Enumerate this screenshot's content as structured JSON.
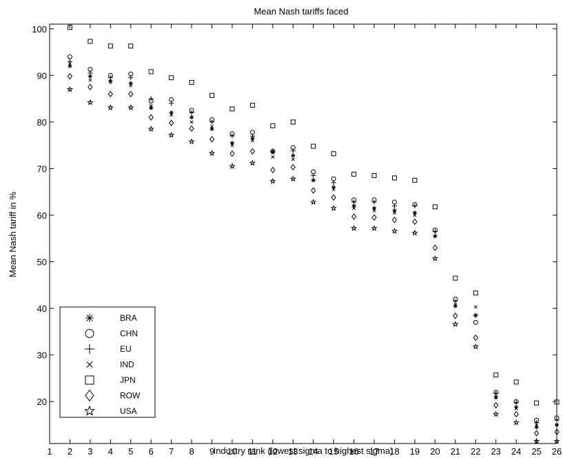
{
  "chart_data": {
    "type": "scatter",
    "title": "Mean Nash tariffs faced",
    "xlabel": "Industry rank (lowest sigma to highest sigma)",
    "ylabel": "Mean Nash tariff in %",
    "xlim": [
      1,
      26
    ],
    "ylim": [
      11,
      101
    ],
    "xticks": [
      1,
      2,
      3,
      4,
      5,
      6,
      7,
      8,
      9,
      10,
      11,
      12,
      13,
      14,
      15,
      16,
      17,
      18,
      19,
      20,
      21,
      22,
      23,
      24,
      25,
      26
    ],
    "yticks": [
      20,
      30,
      40,
      50,
      60,
      70,
      80,
      90,
      100
    ],
    "grid": false,
    "legend_position": "bottom-left",
    "x": [
      2,
      3,
      4,
      5,
      6,
      7,
      8,
      9,
      10,
      11,
      12,
      13,
      14,
      15,
      16,
      17,
      18,
      19,
      20,
      21,
      22,
      23,
      24,
      25,
      26
    ],
    "series": [
      {
        "name": "BRA",
        "marker": "asterisk",
        "values": [
          92.0,
          89.8,
          88.8,
          88.3,
          83.0,
          82.0,
          81.0,
          78.5,
          75.5,
          76.5,
          73.5,
          72.8,
          67.5,
          66.0,
          62.0,
          61.5,
          61.0,
          60.5,
          55.5,
          40.5,
          38.5,
          21.0,
          18.8,
          14.5,
          15.0
        ]
      },
      {
        "name": "CHN",
        "marker": "circle",
        "values": [
          94.0,
          91.3,
          90.0,
          90.3,
          84.5,
          84.8,
          82.5,
          80.5,
          77.5,
          77.8,
          73.7,
          74.5,
          69.3,
          67.8,
          63.3,
          63.3,
          62.8,
          62.3,
          56.8,
          42.0,
          37.0,
          22.0,
          20.0,
          16.0,
          16.5
        ]
      },
      {
        "name": "EU",
        "marker": "plus",
        "values": [
          93.0,
          90.5,
          89.5,
          89.5,
          85.0,
          84.0,
          82.0,
          80.0,
          77.0,
          77.0,
          73.8,
          73.8,
          68.5,
          67.0,
          62.8,
          62.8,
          62.0,
          62.0,
          56.5,
          41.5,
          38.5,
          21.8,
          19.8,
          15.5,
          16.0
        ]
      },
      {
        "name": "IND",
        "marker": "x",
        "values": [
          92.5,
          89.0,
          88.5,
          87.8,
          83.5,
          81.5,
          80.0,
          79.0,
          75.0,
          76.0,
          72.5,
          72.0,
          67.5,
          65.5,
          61.5,
          61.0,
          60.5,
          60.0,
          55.5,
          40.8,
          40.3,
          20.8,
          18.5,
          15.0,
          15.0
        ]
      },
      {
        "name": "JPN",
        "marker": "square",
        "values": [
          100.3,
          97.3,
          96.3,
          96.3,
          90.8,
          89.5,
          88.5,
          85.7,
          82.8,
          83.6,
          79.2,
          80.0,
          74.8,
          73.2,
          68.8,
          68.5,
          68.0,
          67.5,
          61.8,
          46.5,
          43.3,
          25.7,
          24.2,
          19.7,
          19.9
        ]
      },
      {
        "name": "ROW",
        "marker": "diamond",
        "values": [
          89.8,
          87.5,
          86.0,
          86.0,
          81.0,
          79.8,
          78.6,
          76.3,
          73.2,
          73.7,
          69.7,
          70.3,
          65.3,
          63.8,
          59.7,
          59.5,
          59.0,
          58.6,
          53.0,
          38.4,
          33.7,
          19.2,
          17.3,
          13.2,
          13.5
        ]
      },
      {
        "name": "USA",
        "marker": "star",
        "values": [
          87.0,
          84.2,
          83.1,
          83.1,
          78.5,
          77.2,
          75.8,
          73.3,
          70.5,
          71.2,
          67.3,
          67.8,
          62.8,
          61.5,
          57.2,
          57.2,
          56.6,
          56.2,
          50.7,
          36.6,
          31.8,
          17.3,
          15.5,
          11.5,
          11.5
        ]
      }
    ]
  }
}
